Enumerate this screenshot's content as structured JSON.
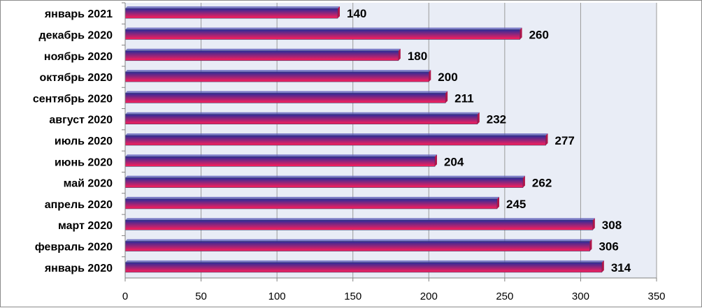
{
  "chart_data": {
    "type": "bar",
    "orientation": "horizontal",
    "categories": [
      "январь 2021",
      "декабрь 2020",
      "ноябрь 2020",
      "октябрь 2020",
      "сентябрь 2020",
      "август 2020",
      "июль 2020",
      "июнь 2020",
      "май 2020",
      "апрель 2020",
      "март 2020",
      "февраль 2020",
      "январь 2020"
    ],
    "values": [
      140,
      260,
      180,
      200,
      211,
      232,
      277,
      204,
      262,
      245,
      308,
      306,
      314
    ],
    "xlim": [
      0,
      350
    ],
    "xticks": [
      0,
      50,
      100,
      150,
      200,
      250,
      300,
      350
    ],
    "grid": "vertical",
    "legend": "none",
    "bar_gradient": [
      "#2b2b9a",
      "#ff1f5a"
    ],
    "plot_background": "#e9edf6"
  }
}
